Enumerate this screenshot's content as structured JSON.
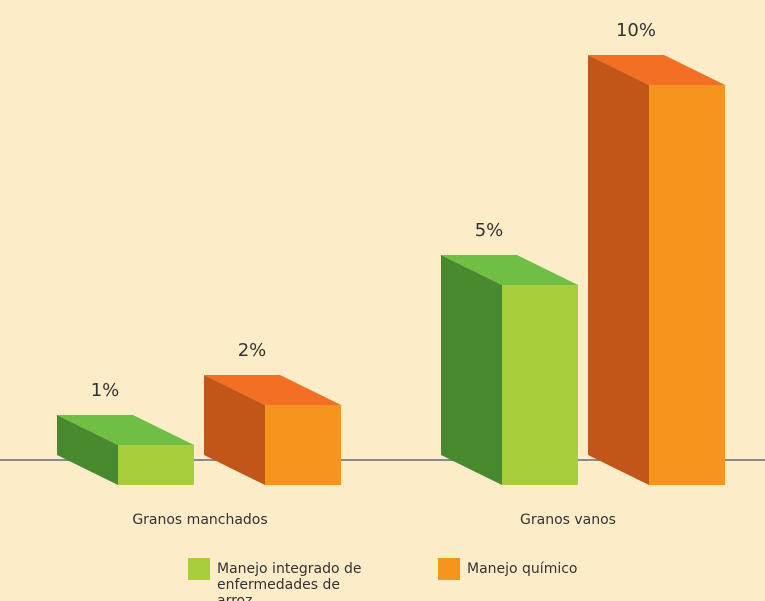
{
  "chart_data": {
    "type": "bar3d",
    "categories": [
      "Granos manchados",
      "Granos vanos"
    ],
    "series": [
      {
        "name": "Manejo integrado de enfermedades de arroz",
        "color": "#a8cf3a",
        "values": [
          1,
          5
        ],
        "value_labels": [
          "1%",
          "5%"
        ]
      },
      {
        "name": "Manejo químico",
        "color": "#f7941d",
        "values": [
          2,
          10
        ],
        "value_labels": [
          "2%",
          "10%"
        ]
      }
    ],
    "ylim": [
      0,
      10
    ],
    "legend": "bottom"
  }
}
